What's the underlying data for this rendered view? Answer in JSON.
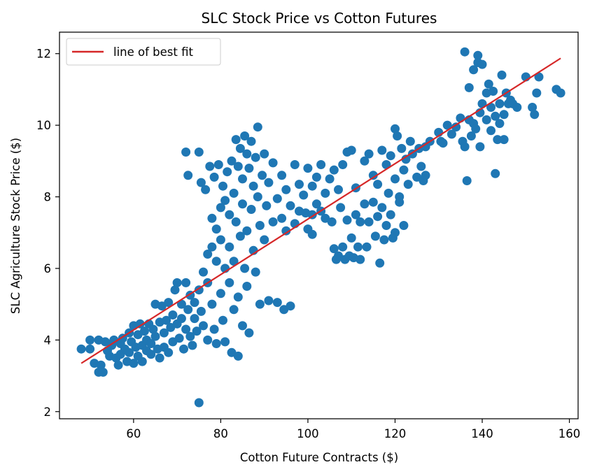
{
  "chart_data": {
    "type": "scatter",
    "title": "SLC Stock Price vs Cotton Futures",
    "xlabel": "Cotton Future Contracts ($)",
    "ylabel": "SLC Agriculture Stock Price ($)",
    "xlim": [
      43,
      162
    ],
    "ylim": [
      1.8,
      12.6
    ],
    "xticks": [
      60,
      80,
      100,
      120,
      140,
      160
    ],
    "yticks": [
      2,
      4,
      6,
      8,
      10,
      12
    ],
    "grid": false,
    "legend": {
      "position": "top-left",
      "entries": [
        "line of best fit"
      ]
    },
    "colors": {
      "points": "#1f77b4",
      "fit_line": "#d62728"
    },
    "fit_line": {
      "name": "line of best fit",
      "x": [
        48,
        158
      ],
      "y": [
        3.35,
        11.87
      ]
    },
    "series": [
      {
        "values": [
          [
            48,
            3.75
          ],
          [
            50,
            3.75
          ],
          [
            50,
            4.0
          ],
          [
            51,
            3.35
          ],
          [
            52,
            3.1
          ],
          [
            52.5,
            3.3
          ],
          [
            53,
            3.1
          ],
          [
            52,
            4.0
          ],
          [
            53.5,
            3.95
          ],
          [
            54,
            3.7
          ],
          [
            54.5,
            3.55
          ],
          [
            55,
            3.85
          ],
          [
            55.5,
            4.0
          ],
          [
            56,
            3.5
          ],
          [
            56.5,
            3.3
          ],
          [
            57,
            3.9
          ],
          [
            57,
            3.6
          ],
          [
            57.5,
            4.05
          ],
          [
            58,
            3.75
          ],
          [
            58.5,
            3.4
          ],
          [
            59,
            4.2
          ],
          [
            59,
            3.65
          ],
          [
            59.5,
            3.95
          ],
          [
            60,
            4.4
          ],
          [
            60,
            3.35
          ],
          [
            60.5,
            3.8
          ],
          [
            61,
            4.15
          ],
          [
            61,
            3.55
          ],
          [
            61.5,
            4.45
          ],
          [
            62,
            3.85
          ],
          [
            62,
            3.4
          ],
          [
            62.5,
            4.25
          ],
          [
            63,
            3.7
          ],
          [
            63,
            4.0
          ],
          [
            63.5,
            4.45
          ],
          [
            64,
            3.9
          ],
          [
            64,
            3.6
          ],
          [
            64.5,
            4.3
          ],
          [
            65,
            5.0
          ],
          [
            65,
            4.1
          ],
          [
            65.5,
            3.75
          ],
          [
            66,
            4.5
          ],
          [
            66,
            3.5
          ],
          [
            66.5,
            4.95
          ],
          [
            67,
            4.2
          ],
          [
            67,
            3.8
          ],
          [
            67.5,
            4.55
          ],
          [
            68,
            5.05
          ],
          [
            68,
            3.65
          ],
          [
            68.5,
            4.35
          ],
          [
            69,
            4.7
          ],
          [
            69,
            3.95
          ],
          [
            69.5,
            5.4
          ],
          [
            70,
            4.45
          ],
          [
            70,
            5.6
          ],
          [
            70.5,
            4.05
          ],
          [
            71,
            5.0
          ],
          [
            71,
            4.6
          ],
          [
            71.5,
            3.75
          ],
          [
            72,
            5.6
          ],
          [
            72,
            4.3
          ],
          [
            72,
            9.25
          ],
          [
            72.5,
            4.85
          ],
          [
            72.5,
            8.6
          ],
          [
            73,
            4.1
          ],
          [
            73,
            5.25
          ],
          [
            73.5,
            3.85
          ],
          [
            74,
            4.6
          ],
          [
            74,
            5.05
          ],
          [
            74.5,
            4.25
          ],
          [
            75,
            9.25
          ],
          [
            75,
            5.4
          ],
          [
            75,
            2.25
          ],
          [
            75.5,
            4.8
          ],
          [
            75.5,
            8.4
          ],
          [
            76,
            5.9
          ],
          [
            76,
            4.4
          ],
          [
            76.5,
            8.2
          ],
          [
            77,
            5.6
          ],
          [
            77,
            6.4
          ],
          [
            77,
            4.0
          ],
          [
            77.5,
            8.85
          ],
          [
            78,
            6.6
          ],
          [
            78,
            5.0
          ],
          [
            78,
            7.4
          ],
          [
            78.5,
            4.3
          ],
          [
            78.5,
            8.55
          ],
          [
            79,
            6.2
          ],
          [
            79,
            7.1
          ],
          [
            79,
            3.9
          ],
          [
            79.5,
            8.9
          ],
          [
            80,
            5.3
          ],
          [
            80,
            6.8
          ],
          [
            80,
            7.7
          ],
          [
            80.5,
            4.55
          ],
          [
            80.5,
            8.3
          ],
          [
            81,
            6.0
          ],
          [
            81,
            7.9
          ],
          [
            81,
            3.95
          ],
          [
            81.5,
            8.7
          ],
          [
            82,
            5.6
          ],
          [
            82,
            6.6
          ],
          [
            82,
            7.5
          ],
          [
            82.5,
            9.0
          ],
          [
            82.5,
            3.65
          ],
          [
            83,
            8.1
          ],
          [
            83,
            6.2
          ],
          [
            83,
            4.85
          ],
          [
            83.5,
            9.6
          ],
          [
            83.5,
            7.3
          ],
          [
            84,
            8.85
          ],
          [
            84,
            5.2
          ],
          [
            84,
            3.55
          ],
          [
            84.5,
            9.35
          ],
          [
            84.5,
            6.9
          ],
          [
            85,
            8.5
          ],
          [
            85,
            7.8
          ],
          [
            85,
            4.4
          ],
          [
            85.5,
            9.7
          ],
          [
            85.5,
            6.0
          ],
          [
            86,
            9.2
          ],
          [
            86,
            7.05
          ],
          [
            86,
            5.5
          ],
          [
            86.5,
            8.8
          ],
          [
            86.5,
            4.2
          ],
          [
            87,
            9.55
          ],
          [
            87,
            7.65
          ],
          [
            87.5,
            8.3
          ],
          [
            87.5,
            6.5
          ],
          [
            88,
            9.1
          ],
          [
            88,
            5.9
          ],
          [
            88.5,
            9.95
          ],
          [
            88.5,
            8.0
          ],
          [
            89,
            7.2
          ],
          [
            89,
            5.0
          ],
          [
            89.5,
            8.6
          ],
          [
            90,
            9.2
          ],
          [
            90,
            6.8
          ],
          [
            90.5,
            7.75
          ],
          [
            91,
            8.4
          ],
          [
            91,
            5.1
          ],
          [
            92,
            8.95
          ],
          [
            92,
            7.3
          ],
          [
            93,
            7.95
          ],
          [
            93,
            5.05
          ],
          [
            94,
            8.6
          ],
          [
            94,
            7.4
          ],
          [
            94.5,
            4.85
          ],
          [
            95,
            8.2
          ],
          [
            95,
            7.05
          ],
          [
            96,
            7.75
          ],
          [
            96,
            4.95
          ],
          [
            97,
            8.9
          ],
          [
            97,
            7.25
          ],
          [
            98,
            8.35
          ],
          [
            98,
            7.6
          ],
          [
            99,
            8.05
          ],
          [
            99.5,
            7.55
          ],
          [
            100,
            8.8
          ],
          [
            100,
            7.1
          ],
          [
            101,
            8.3
          ],
          [
            101,
            7.5
          ],
          [
            101,
            6.95
          ],
          [
            102,
            8.55
          ],
          [
            102,
            7.8
          ],
          [
            103,
            8.9
          ],
          [
            103,
            7.6
          ],
          [
            104,
            8.1
          ],
          [
            104,
            7.4
          ],
          [
            105,
            8.5
          ],
          [
            105.5,
            7.3
          ],
          [
            106,
            8.75
          ],
          [
            106,
            6.55
          ],
          [
            106.5,
            6.25
          ],
          [
            107,
            8.2
          ],
          [
            107,
            6.35
          ],
          [
            107.5,
            7.7
          ],
          [
            108,
            8.9
          ],
          [
            108,
            6.6
          ],
          [
            108.5,
            6.25
          ],
          [
            109,
            9.25
          ],
          [
            109,
            7.35
          ],
          [
            109.5,
            6.35
          ],
          [
            110,
            9.3
          ],
          [
            110,
            6.85
          ],
          [
            110.5,
            6.3
          ],
          [
            111,
            8.25
          ],
          [
            111,
            7.5
          ],
          [
            111.5,
            6.6
          ],
          [
            112,
            7.3
          ],
          [
            112,
            6.25
          ],
          [
            113,
            9.0
          ],
          [
            113,
            7.8
          ],
          [
            113.5,
            6.6
          ],
          [
            114,
            9.2
          ],
          [
            114,
            7.3
          ],
          [
            115,
            8.6
          ],
          [
            115,
            7.85
          ],
          [
            115.5,
            6.9
          ],
          [
            116,
            7.45
          ],
          [
            116,
            8.35
          ],
          [
            116.5,
            6.15
          ],
          [
            117,
            9.3
          ],
          [
            117,
            7.7
          ],
          [
            117.5,
            6.8
          ],
          [
            118,
            8.9
          ],
          [
            118,
            7.2
          ],
          [
            118.5,
            8.1
          ],
          [
            119,
            9.15
          ],
          [
            119,
            7.5
          ],
          [
            119.5,
            6.85
          ],
          [
            120,
            9.9
          ],
          [
            120,
            8.5
          ],
          [
            120,
            7.0
          ],
          [
            120.5,
            9.7
          ],
          [
            121,
            8.0
          ],
          [
            121,
            7.85
          ],
          [
            121.5,
            9.35
          ],
          [
            122,
            8.75
          ],
          [
            122,
            7.2
          ],
          [
            122.5,
            9.05
          ],
          [
            123,
            8.35
          ],
          [
            123.5,
            9.55
          ],
          [
            124,
            9.2
          ],
          [
            125,
            8.55
          ],
          [
            125.5,
            9.35
          ],
          [
            126,
            8.85
          ],
          [
            126.5,
            8.45
          ],
          [
            127,
            8.6
          ],
          [
            127,
            9.4
          ],
          [
            128,
            9.55
          ],
          [
            130,
            9.8
          ],
          [
            130.5,
            9.55
          ],
          [
            131,
            9.5
          ],
          [
            132,
            10.0
          ],
          [
            133,
            9.75
          ],
          [
            134,
            9.95
          ],
          [
            135,
            10.2
          ],
          [
            135.5,
            9.55
          ],
          [
            136,
            12.05
          ],
          [
            136,
            9.4
          ],
          [
            136.5,
            8.45
          ],
          [
            137,
            10.15
          ],
          [
            137,
            11.05
          ],
          [
            137.5,
            9.7
          ],
          [
            138,
            10.05
          ],
          [
            138,
            11.55
          ],
          [
            138.5,
            9.9
          ],
          [
            139,
            11.95
          ],
          [
            139,
            11.75
          ],
          [
            139.5,
            10.35
          ],
          [
            139.5,
            9.4
          ],
          [
            140,
            10.6
          ],
          [
            140,
            11.7
          ],
          [
            141,
            10.15
          ],
          [
            141,
            10.9
          ],
          [
            141.5,
            11.15
          ],
          [
            142,
            10.5
          ],
          [
            142,
            9.85
          ],
          [
            142.5,
            10.95
          ],
          [
            143,
            10.25
          ],
          [
            143,
            8.65
          ],
          [
            143.5,
            9.6
          ],
          [
            144,
            10.6
          ],
          [
            144,
            10.05
          ],
          [
            144.5,
            11.4
          ],
          [
            145,
            10.3
          ],
          [
            145,
            9.6
          ],
          [
            145.5,
            10.9
          ],
          [
            146,
            10.6
          ],
          [
            146.5,
            10.7
          ],
          [
            147,
            10.6
          ],
          [
            148,
            10.5
          ],
          [
            150,
            11.35
          ],
          [
            151.5,
            10.5
          ],
          [
            152,
            10.3
          ],
          [
            152.5,
            10.9
          ],
          [
            153,
            11.35
          ],
          [
            157,
            11.0
          ],
          [
            158,
            10.9
          ]
        ]
      }
    ]
  }
}
